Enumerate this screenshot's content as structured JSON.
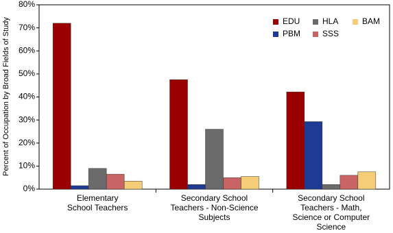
{
  "chart_data": {
    "type": "bar",
    "y_label": "Percent of Occupation by Broad Fields of Study",
    "categories": [
      "Elementary\nSchool Teachers",
      "Secondary School\nTeachers - Non-Science\nSubjects",
      "Secondary School\nTeachers - Math,\nScience or Computer\nScience"
    ],
    "series": [
      {
        "name": "EDU",
        "color": "#9b0000",
        "values": [
          72,
          47.5,
          42.2
        ]
      },
      {
        "name": "PBM",
        "color": "#1f3a93",
        "values": [
          1.5,
          2,
          29.3
        ]
      },
      {
        "name": "HLA",
        "color": "#6b6b6b",
        "values": [
          9,
          26,
          2
        ]
      },
      {
        "name": "SSS",
        "color": "#c96464",
        "values": [
          6.5,
          5,
          6
        ]
      },
      {
        "name": "BAM",
        "color": "#f5cd76",
        "values": [
          3.5,
          5.5,
          7.5
        ]
      }
    ],
    "ylim": [
      0,
      80
    ],
    "yticks": [
      {
        "value": 0,
        "label": "0%"
      },
      {
        "value": 10,
        "label": "10%"
      },
      {
        "value": 20,
        "label": "20%"
      },
      {
        "value": 30,
        "label": "30%"
      },
      {
        "value": 40,
        "label": "40%"
      },
      {
        "value": 50,
        "label": "50%"
      },
      {
        "value": 60,
        "label": "60%"
      },
      {
        "value": 70,
        "label": "70%"
      },
      {
        "value": 80,
        "label": "80%"
      }
    ],
    "grid": false,
    "legend": "top-right"
  }
}
